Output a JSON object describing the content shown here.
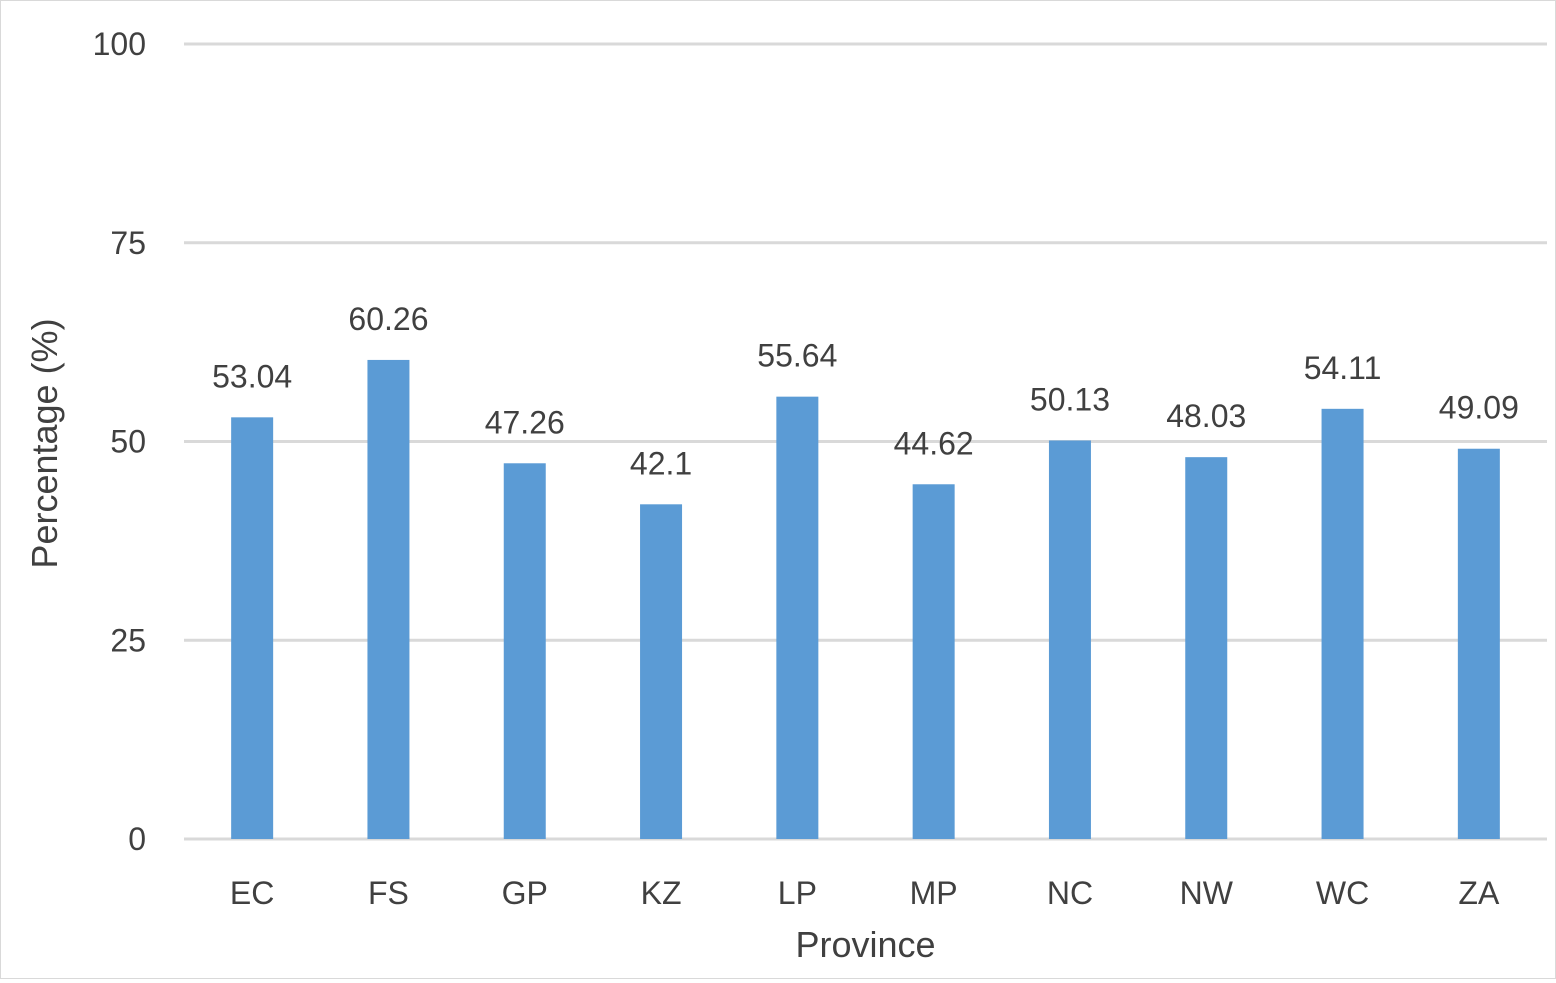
{
  "chart_data": {
    "type": "bar",
    "title": "",
    "xlabel": "Province",
    "ylabel": "Percentage (%)",
    "categories": [
      "EC",
      "FS",
      "GP",
      "KZ",
      "LP",
      "MP",
      "NC",
      "NW",
      "WC",
      "ZA"
    ],
    "values": [
      53.04,
      60.26,
      47.26,
      42.1,
      55.64,
      44.62,
      50.13,
      48.03,
      54.11,
      49.09
    ],
    "data_labels": [
      "53.04",
      "60.26",
      "47.26",
      "42.1",
      "55.64",
      "44.62",
      "50.13",
      "48.03",
      "54.11",
      "49.09"
    ],
    "ylim": [
      0,
      100
    ],
    "yticks": [
      0,
      25,
      50,
      75,
      100
    ],
    "ytick_labels": [
      "0",
      "25",
      "50",
      "75",
      "100"
    ],
    "grid": true,
    "legend": "none",
    "bar_color": "#5b9bd5",
    "gridline_color": "#d9d9d9",
    "text_color": "#404040"
  }
}
